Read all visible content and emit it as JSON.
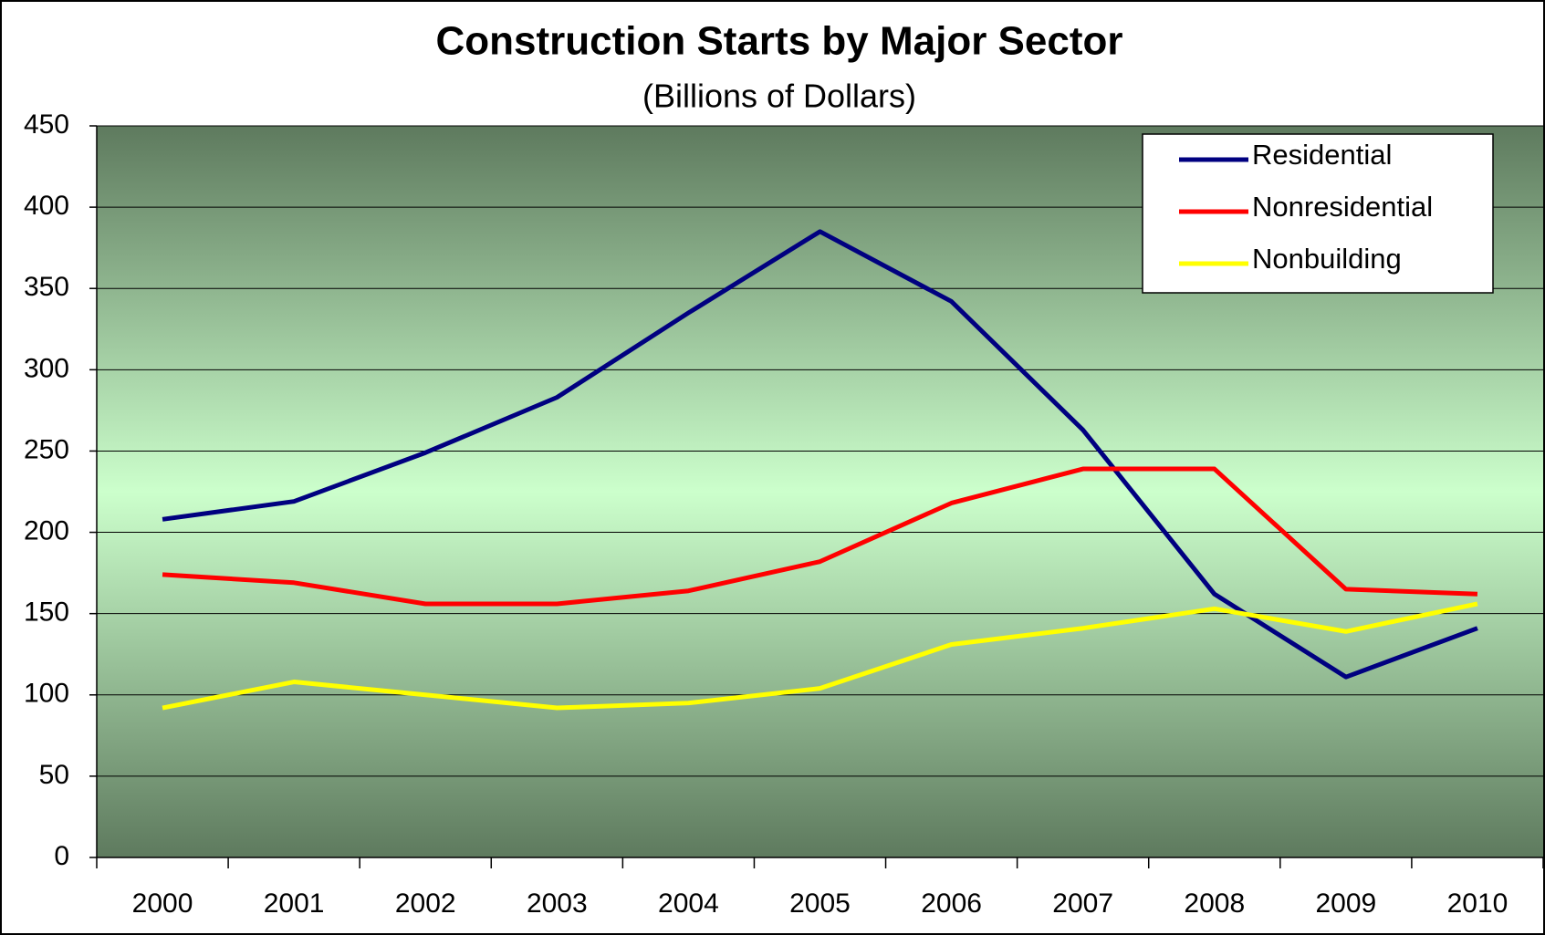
{
  "chart_data": {
    "type": "line",
    "title": "Construction Starts by Major Sector",
    "subtitle": "(Billions of Dollars)",
    "categories": [
      "2000",
      "2001",
      "2002",
      "2003",
      "2004",
      "2005",
      "2006",
      "2007",
      "2008",
      "2009",
      "2010"
    ],
    "series": [
      {
        "name": "Residential",
        "color": "#000080",
        "values": [
          208,
          219,
          249,
          283,
          335,
          385,
          342,
          263,
          162,
          111,
          141
        ]
      },
      {
        "name": "Nonresidential",
        "color": "#ff0000",
        "values": [
          174,
          169,
          156,
          156,
          164,
          182,
          218,
          239,
          239,
          165,
          162
        ]
      },
      {
        "name": "Nonbuilding",
        "color": "#ffff00",
        "values": [
          92,
          108,
          100,
          92,
          95,
          104,
          131,
          141,
          153,
          139,
          156
        ]
      }
    ],
    "ylim": [
      0,
      450
    ],
    "yticks": [
      0,
      50,
      100,
      150,
      200,
      250,
      300,
      350,
      400,
      450
    ],
    "grid": true,
    "legend": "top-right"
  }
}
